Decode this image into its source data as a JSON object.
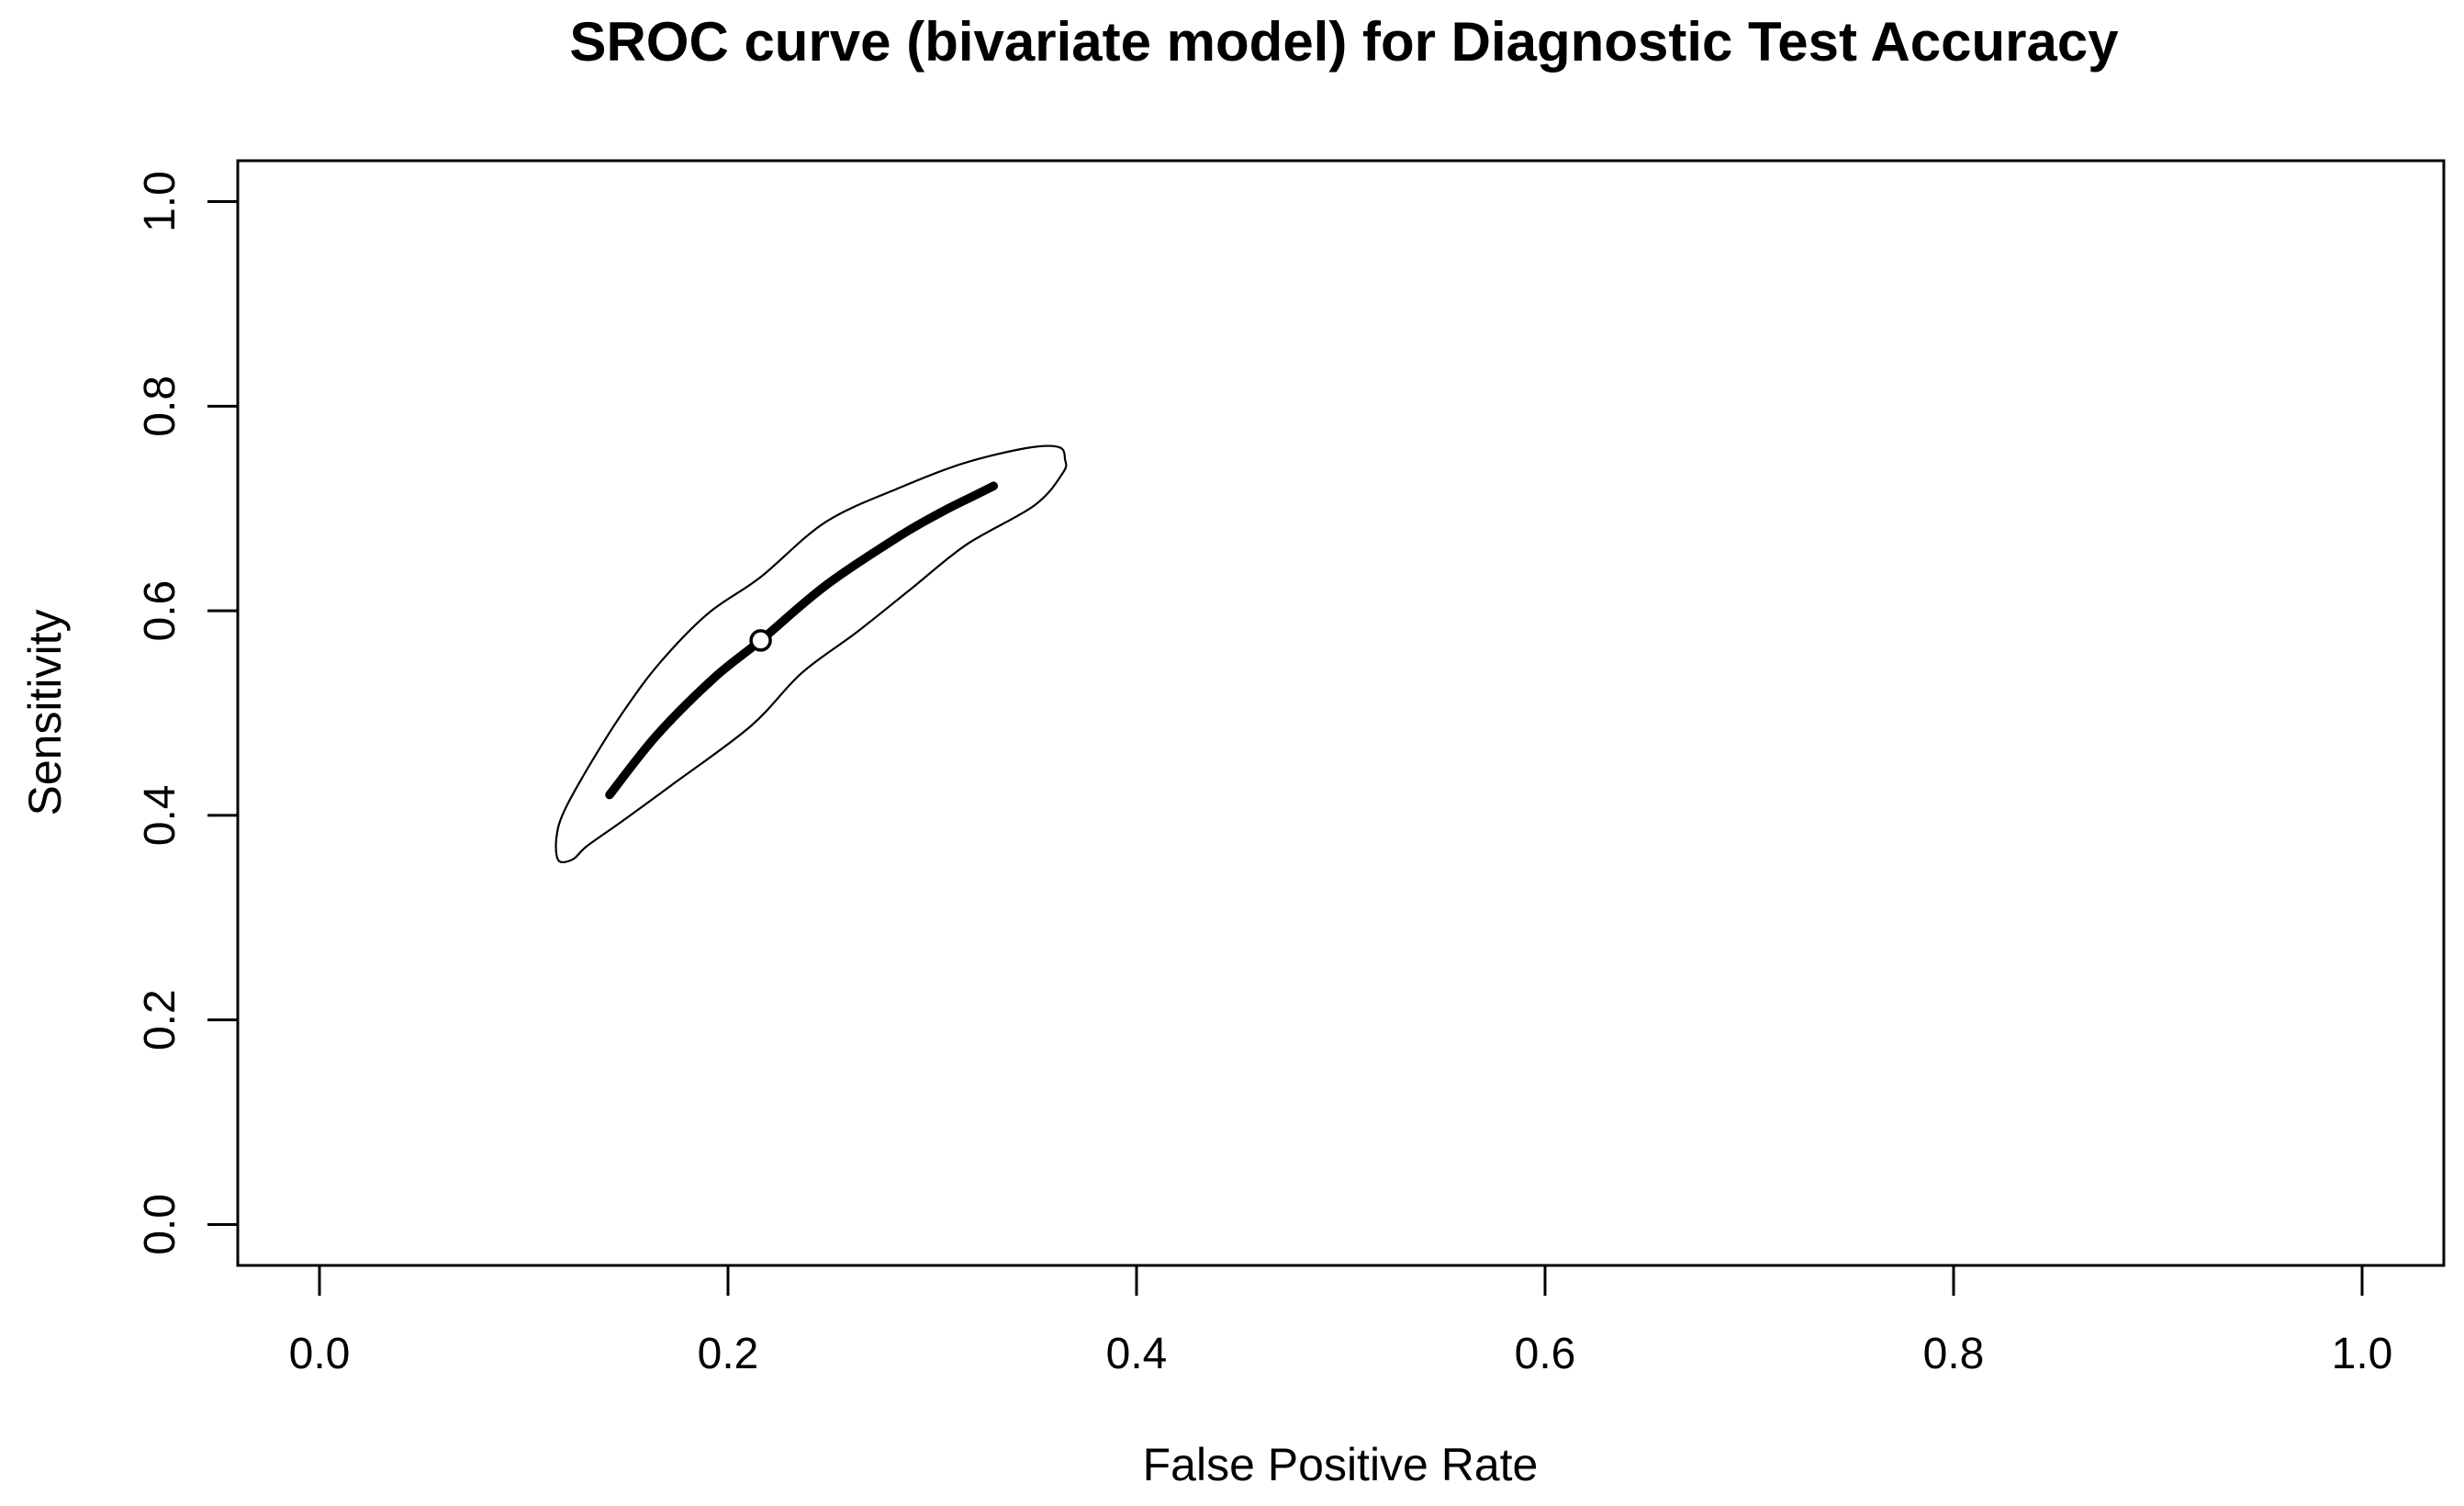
{
  "window": {
    "background": "#ffffff"
  },
  "chart_data": {
    "type": "line",
    "title": "SROC curve (bivariate model) for Diagnostic Test Accuracy",
    "xlabel": "False Positive Rate",
    "ylabel": "Sensitivity",
    "xlim": [
      -0.04,
      1.04
    ],
    "ylim": [
      -0.04,
      1.04
    ],
    "grid": false,
    "legend": null,
    "x_ticks": {
      "values": [
        0.0,
        0.2,
        0.4,
        0.6,
        0.8,
        1.0
      ],
      "labels": [
        "0.0",
        "0.2",
        "0.4",
        "0.6",
        "0.8",
        "1.0"
      ]
    },
    "y_ticks": {
      "values": [
        0.0,
        0.2,
        0.4,
        0.6,
        0.8,
        1.0
      ],
      "labels": [
        "0.0",
        "0.2",
        "0.4",
        "0.6",
        "0.8",
        "1.0"
      ]
    },
    "colors": {
      "foreground": "#000000",
      "background": "#ffffff"
    },
    "series": [
      {
        "name": "SROC curve",
        "kind": "line",
        "stroke": "#000000",
        "stroke_width": 9.5,
        "points": [
          [
            0.142,
            0.42
          ],
          [
            0.165,
            0.478
          ],
          [
            0.193,
            0.534
          ],
          [
            0.216,
            0.571
          ],
          [
            0.248,
            0.625
          ],
          [
            0.284,
            0.673
          ],
          [
            0.305,
            0.697
          ],
          [
            0.32,
            0.712
          ],
          [
            0.33,
            0.722
          ]
        ]
      },
      {
        "name": "95% confidence region",
        "kind": "closed-curve",
        "stroke": "#000000",
        "stroke_width": 2.2,
        "points": [
          [
            0.116,
            0.378
          ],
          [
            0.12,
            0.405
          ],
          [
            0.134,
            0.455
          ],
          [
            0.15,
            0.505
          ],
          [
            0.167,
            0.55
          ],
          [
            0.19,
            0.597
          ],
          [
            0.216,
            0.633
          ],
          [
            0.248,
            0.687
          ],
          [
            0.285,
            0.721
          ],
          [
            0.315,
            0.744
          ],
          [
            0.346,
            0.759
          ],
          [
            0.362,
            0.76
          ],
          [
            0.365,
            0.748
          ],
          [
            0.364,
            0.735
          ],
          [
            0.35,
            0.703
          ],
          [
            0.317,
            0.665
          ],
          [
            0.29,
            0.622
          ],
          [
            0.263,
            0.579
          ],
          [
            0.236,
            0.539
          ],
          [
            0.211,
            0.487
          ],
          [
            0.172,
            0.429
          ],
          [
            0.148,
            0.394
          ],
          [
            0.131,
            0.37
          ],
          [
            0.124,
            0.357
          ],
          [
            0.117,
            0.356
          ]
        ]
      },
      {
        "name": "summary point",
        "kind": "point",
        "marker": "open-circle",
        "x": 0.216,
        "y": 0.571,
        "radius": 10.5,
        "stroke_width": 3.5
      }
    ]
  }
}
